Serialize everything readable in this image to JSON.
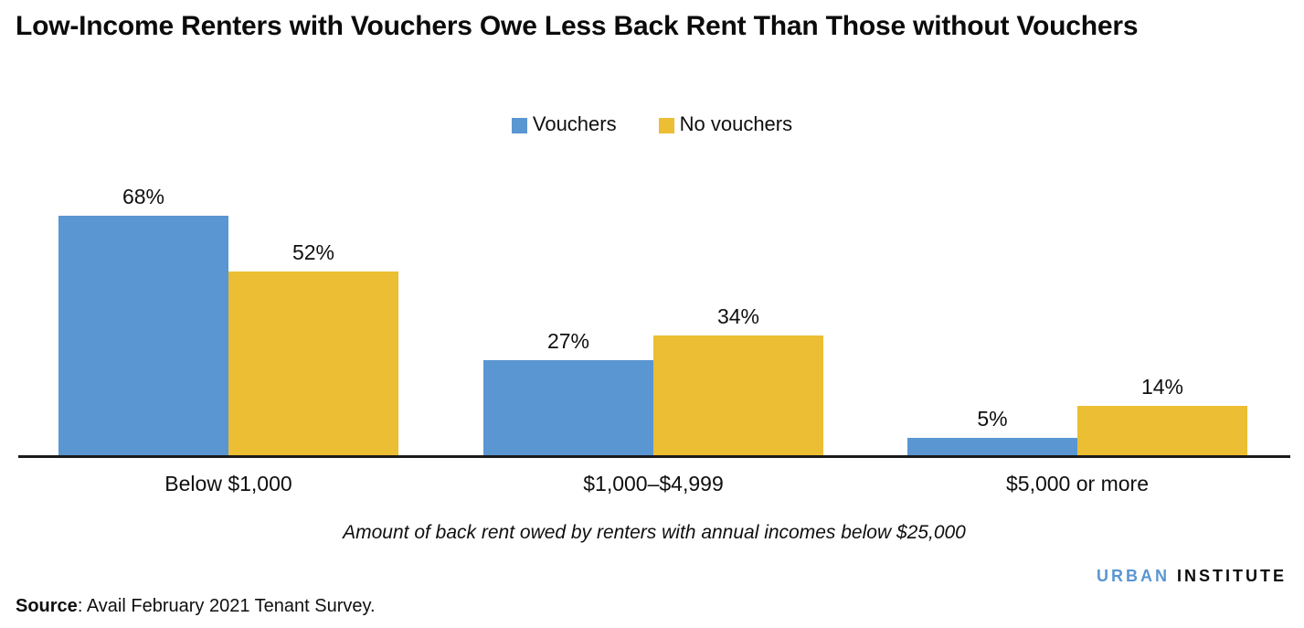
{
  "page": {
    "source_label": "Source",
    "source_text": ": Avail February 2021 Tenant Survey.",
    "logo": {
      "part1": "URBAN",
      "part2": "INSTITUTE"
    }
  },
  "colors": {
    "vouchers_blue": "#5A96D2",
    "no_vouchers_yellow": "#EBBE33",
    "logo_blue": "#5A96D2",
    "axis_line": "#1A1A1A"
  },
  "chart_data": {
    "type": "bar",
    "title": "Low-Income Renters with Vouchers Owe Less Back Rent Than Those without Vouchers",
    "categories": [
      "Below $1,000",
      "$1,000–$4,999",
      "$5,000 or more"
    ],
    "series": [
      {
        "name": "Vouchers",
        "color": "#5A96D2",
        "values": [
          68,
          27,
          5
        ]
      },
      {
        "name": "No vouchers",
        "color": "#EBBE33",
        "values": [
          52,
          34,
          14
        ]
      }
    ],
    "value_suffix": "%",
    "xlabel": "Amount of back rent owed by renters with annual incomes below $25,000",
    "ylabel": "",
    "ylim": [
      0,
      100
    ],
    "grid": false,
    "legend_position": "top-center",
    "data_labels": true
  }
}
